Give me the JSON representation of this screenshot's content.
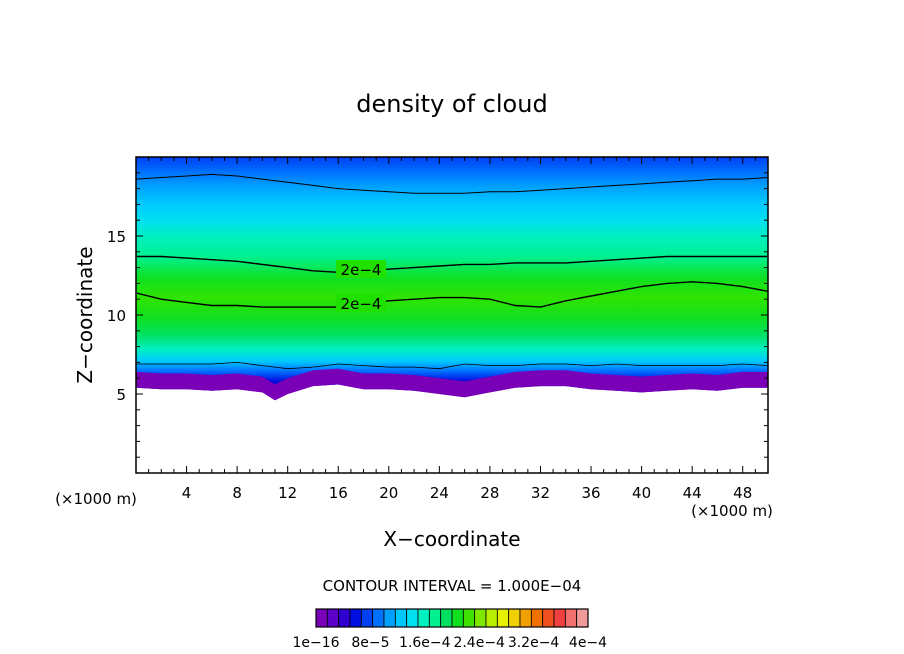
{
  "chart_data": {
    "type": "heatmap",
    "title": "density of cloud",
    "xlabel": "X−coordinate",
    "ylabel": "Z−coordinate",
    "x_unit_left": "(×1000 m)",
    "x_unit_right": "(×1000 m)",
    "xlim": [
      0,
      50
    ],
    "ylim": [
      0,
      20
    ],
    "x_ticks": [
      4,
      8,
      12,
      16,
      20,
      24,
      28,
      32,
      36,
      40,
      44,
      48
    ],
    "y_ticks": [
      5,
      10,
      15
    ],
    "contour_interval_text": "CONTOUR INTERVAL = 1.000E−04",
    "contour_labels": [
      "2e−4",
      "2e−4"
    ],
    "legend_labels": [
      "1e−16",
      "8e−5",
      "1.6e−4",
      "2.4e−4",
      "3.2e−4",
      "4e−4"
    ],
    "colorbar_colors": [
      "#7a00b8",
      "#5a00c8",
      "#3000d0",
      "#0010e0",
      "#0040f0",
      "#0070ff",
      "#00a0ff",
      "#00c8ff",
      "#00e0f0",
      "#00f0c0",
      "#00f090",
      "#00e060",
      "#10e020",
      "#40e000",
      "#80e800",
      "#b8ee00",
      "#e6f000",
      "#f0d000",
      "#f0a000",
      "#f07000",
      "#f05020",
      "#f04040",
      "#f07070",
      "#f09a9a"
    ],
    "field_profile": {
      "x": [
        0,
        2,
        4,
        6,
        8,
        10,
        11,
        12,
        14,
        16,
        18,
        20,
        22,
        24,
        26,
        28,
        30,
        32,
        34,
        36,
        38,
        40,
        42,
        44,
        46,
        48,
        50
      ],
      "cloud_base_z": [
        5.4,
        5.3,
        5.3,
        5.2,
        5.3,
        5.1,
        4.6,
        5.0,
        5.5,
        5.6,
        5.3,
        5.3,
        5.2,
        5.0,
        4.8,
        5.1,
        5.4,
        5.5,
        5.5,
        5.3,
        5.2,
        5.1,
        5.2,
        5.3,
        5.2,
        5.4,
        5.4
      ],
      "contour_top_z": [
        18.6,
        18.7,
        18.8,
        18.9,
        18.8,
        18.6,
        18.5,
        18.4,
        18.2,
        18.0,
        17.9,
        17.8,
        17.7,
        17.7,
        17.7,
        17.8,
        17.8,
        17.9,
        18.0,
        18.1,
        18.2,
        18.3,
        18.4,
        18.5,
        18.6,
        18.6,
        18.7
      ],
      "contour_upper_2e4_z": [
        13.7,
        13.7,
        13.6,
        13.5,
        13.4,
        13.2,
        13.1,
        13.0,
        12.8,
        12.7,
        12.8,
        12.9,
        13.0,
        13.1,
        13.2,
        13.2,
        13.3,
        13.3,
        13.3,
        13.4,
        13.5,
        13.6,
        13.7,
        13.7,
        13.7,
        13.7,
        13.7
      ],
      "contour_lower_2e4_z": [
        11.4,
        11.0,
        10.8,
        10.6,
        10.6,
        10.5,
        10.5,
        10.5,
        10.5,
        10.5,
        10.7,
        10.9,
        11.0,
        11.1,
        11.1,
        11.0,
        10.6,
        10.5,
        10.9,
        11.2,
        11.5,
        11.8,
        12.0,
        12.1,
        12.0,
        11.8,
        11.5
      ],
      "contour_lower_edge_z": [
        6.9,
        6.9,
        6.9,
        6.9,
        7.0,
        6.8,
        6.7,
        6.6,
        6.7,
        6.9,
        6.8,
        6.7,
        6.7,
        6.6,
        6.9,
        6.8,
        6.8,
        6.9,
        6.9,
        6.8,
        6.9,
        6.8,
        6.8,
        6.8,
        6.8,
        6.9,
        6.8
      ]
    }
  }
}
